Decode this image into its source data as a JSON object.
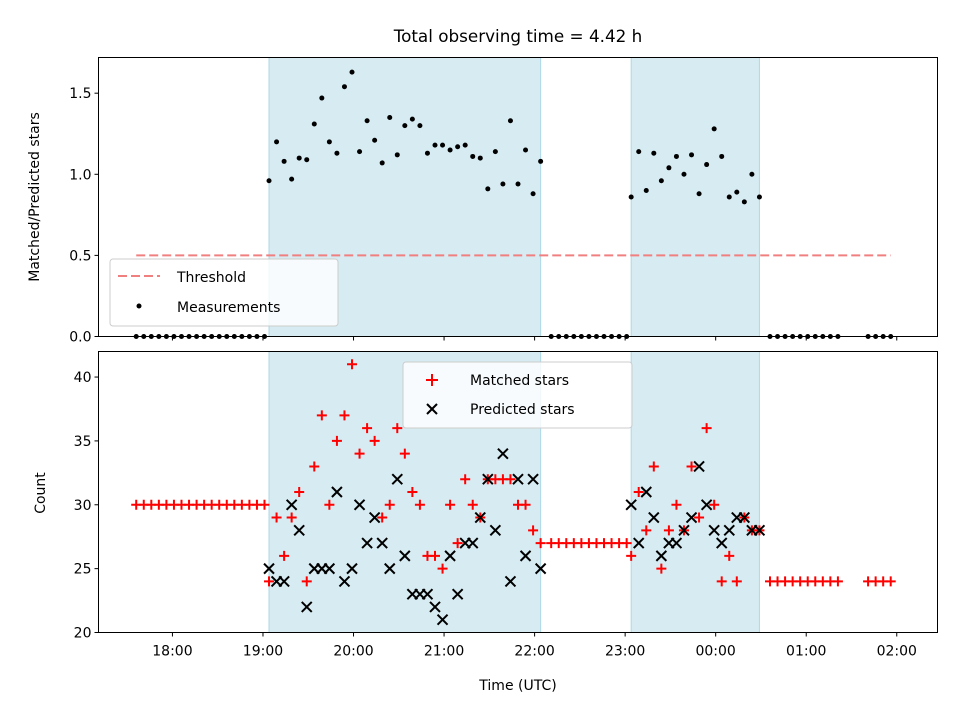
{
  "title": "Total observing time = 4.42 h",
  "colors": {
    "shade": "#add8e6",
    "threshold": "#f08080",
    "matched": "#ff0000",
    "predicted": "#000000",
    "measurement": "#000000"
  },
  "chart_data": [
    {
      "type": "scatter",
      "panel": "top",
      "ylabel": "Matched/Predicted stars",
      "ylim": [
        0,
        1.72
      ],
      "yticks": [
        0.0,
        0.5,
        1.0,
        1.5
      ],
      "ytick_labels": [
        "0.0",
        "0.5",
        "1.0",
        "1.5"
      ],
      "legend_position": "lower-left",
      "legend": [
        {
          "key": "threshold",
          "label": "Threshold"
        },
        {
          "key": "measurements",
          "label": "Measurements"
        }
      ],
      "threshold": {
        "value": 0.5,
        "x_start": "17:36",
        "x_end": "01:56"
      },
      "shaded_intervals": [
        [
          "19:04",
          "22:04"
        ],
        [
          "23:04",
          "00:29"
        ]
      ],
      "series": [
        {
          "name": "Measurements",
          "x": [
            "17:36",
            "17:41",
            "17:46",
            "17:51",
            "17:56",
            "18:01",
            "18:06",
            "18:11",
            "18:16",
            "18:21",
            "18:26",
            "18:31",
            "18:36",
            "18:41",
            "18:46",
            "18:51",
            "18:56",
            "19:01",
            "19:04",
            "19:09",
            "19:14",
            "19:19",
            "19:24",
            "19:29",
            "19:34",
            "19:39",
            "19:44",
            "19:49",
            "19:54",
            "19:59",
            "20:04",
            "20:09",
            "20:14",
            "20:19",
            "20:24",
            "20:29",
            "20:34",
            "20:39",
            "20:44",
            "20:49",
            "20:54",
            "20:59",
            "21:04",
            "21:09",
            "21:14",
            "21:19",
            "21:24",
            "21:29",
            "21:34",
            "21:39",
            "21:44",
            "21:49",
            "21:54",
            "21:59",
            "22:04",
            "22:11",
            "22:16",
            "22:21",
            "22:26",
            "22:31",
            "22:36",
            "22:41",
            "22:46",
            "22:51",
            "22:56",
            "23:01",
            "23:04",
            "23:09",
            "23:14",
            "23:19",
            "23:24",
            "23:29",
            "23:34",
            "23:39",
            "23:44",
            "23:49",
            "23:54",
            "23:59",
            "00:04",
            "00:09",
            "00:14",
            "00:19",
            "00:24",
            "00:29",
            "00:36",
            "00:41",
            "00:46",
            "00:51",
            "00:56",
            "01:01",
            "01:06",
            "01:11",
            "01:16",
            "01:21",
            "01:41",
            "01:46",
            "01:51",
            "01:56"
          ],
          "y": [
            0,
            0,
            0,
            0,
            0,
            0,
            0,
            0,
            0,
            0,
            0,
            0,
            0,
            0,
            0,
            0,
            0,
            0,
            0.96,
            1.2,
            1.08,
            0.97,
            1.1,
            1.09,
            1.31,
            1.47,
            1.2,
            1.13,
            1.54,
            1.63,
            1.14,
            1.33,
            1.21,
            1.07,
            1.35,
            1.12,
            1.3,
            1.34,
            1.3,
            1.13,
            1.18,
            1.18,
            1.15,
            1.17,
            1.18,
            1.11,
            1.1,
            0.91,
            1.14,
            0.94,
            1.33,
            0.94,
            1.15,
            0.88,
            1.08,
            0,
            0,
            0,
            0,
            0,
            0,
            0,
            0,
            0,
            0,
            0,
            0.86,
            1.14,
            0.9,
            1.13,
            0.96,
            1.04,
            1.11,
            1.0,
            1.12,
            0.88,
            1.06,
            1.28,
            1.11,
            0.86,
            0.89,
            0.83,
            1.0,
            0.86,
            0,
            0,
            0,
            0,
            0,
            0,
            0,
            0,
            0,
            0,
            0,
            0,
            0,
            0
          ]
        }
      ]
    },
    {
      "type": "scatter",
      "panel": "bottom",
      "xlabel": "Time (UTC)",
      "ylabel": "Count",
      "ylim": [
        20,
        42
      ],
      "yticks": [
        20,
        25,
        30,
        35,
        40
      ],
      "ytick_labels": [
        "20",
        "25",
        "30",
        "35",
        "40"
      ],
      "xticks": [
        "18:00",
        "19:00",
        "20:00",
        "21:00",
        "22:00",
        "23:00",
        "00:00",
        "01:00",
        "02:00"
      ],
      "legend_position": "upper-center",
      "legend": [
        {
          "key": "matched",
          "label": "Matched stars"
        },
        {
          "key": "predicted",
          "label": "Predicted stars"
        }
      ],
      "shaded_intervals": [
        [
          "19:04",
          "22:04"
        ],
        [
          "23:04",
          "00:29"
        ]
      ],
      "series": [
        {
          "name": "Matched stars",
          "marker": "plus",
          "x": [
            "17:36",
            "17:41",
            "17:46",
            "17:51",
            "17:56",
            "18:01",
            "18:06",
            "18:11",
            "18:16",
            "18:21",
            "18:26",
            "18:31",
            "18:36",
            "18:41",
            "18:46",
            "18:51",
            "18:56",
            "19:01",
            "19:04",
            "19:09",
            "19:14",
            "19:19",
            "19:24",
            "19:29",
            "19:34",
            "19:39",
            "19:44",
            "19:49",
            "19:54",
            "19:59",
            "20:04",
            "20:09",
            "20:14",
            "20:19",
            "20:24",
            "20:29",
            "20:34",
            "20:39",
            "20:44",
            "20:49",
            "20:54",
            "20:59",
            "21:04",
            "21:09",
            "21:14",
            "21:19",
            "21:24",
            "21:29",
            "21:34",
            "21:39",
            "21:44",
            "21:49",
            "21:54",
            "21:59",
            "22:04",
            "22:11",
            "22:16",
            "22:21",
            "22:26",
            "22:31",
            "22:36",
            "22:41",
            "22:46",
            "22:51",
            "22:56",
            "23:01",
            "23:04",
            "23:09",
            "23:14",
            "23:19",
            "23:24",
            "23:29",
            "23:34",
            "23:39",
            "23:44",
            "23:49",
            "23:54",
            "23:59",
            "00:04",
            "00:09",
            "00:14",
            "00:19",
            "00:24",
            "00:29",
            "00:36",
            "00:41",
            "00:46",
            "00:51",
            "00:56",
            "01:01",
            "01:06",
            "01:11",
            "01:16",
            "01:21",
            "01:41",
            "01:46",
            "01:51",
            "01:56"
          ],
          "y": [
            30,
            30,
            30,
            30,
            30,
            30,
            30,
            30,
            30,
            30,
            30,
            30,
            30,
            30,
            30,
            30,
            30,
            30,
            24,
            29,
            26,
            29,
            31,
            24,
            33,
            37,
            30,
            35,
            37,
            41,
            34,
            36,
            35,
            29,
            30,
            36,
            34,
            31,
            30,
            26,
            26,
            25,
            30,
            27,
            32,
            30,
            29,
            32,
            32,
            32,
            32,
            30,
            30,
            28,
            27,
            27,
            27,
            27,
            27,
            27,
            27,
            27,
            27,
            27,
            27,
            27,
            26,
            31,
            28,
            33,
            25,
            28,
            30,
            28,
            33,
            29,
            36,
            30,
            24,
            26,
            24,
            29,
            28,
            28,
            24,
            24,
            24,
            24,
            24,
            24,
            24,
            24,
            24,
            24,
            24,
            24,
            24,
            24
          ]
        },
        {
          "name": "Predicted stars",
          "marker": "x",
          "x": [
            "19:04",
            "19:09",
            "19:14",
            "19:19",
            "19:24",
            "19:29",
            "19:34",
            "19:39",
            "19:44",
            "19:49",
            "19:54",
            "19:59",
            "20:04",
            "20:09",
            "20:14",
            "20:19",
            "20:24",
            "20:29",
            "20:34",
            "20:39",
            "20:44",
            "20:49",
            "20:54",
            "20:59",
            "21:04",
            "21:09",
            "21:14",
            "21:19",
            "21:24",
            "21:29",
            "21:34",
            "21:39",
            "21:44",
            "21:49",
            "21:54",
            "21:59",
            "22:04",
            "23:04",
            "23:09",
            "23:14",
            "23:19",
            "23:24",
            "23:29",
            "23:34",
            "23:39",
            "23:44",
            "23:49",
            "23:54",
            "23:59",
            "00:04",
            "00:09",
            "00:14",
            "00:19",
            "00:24",
            "00:29"
          ],
          "y": [
            25,
            24,
            24,
            30,
            28,
            22,
            25,
            25,
            25,
            31,
            24,
            25,
            30,
            27,
            29,
            27,
            25,
            32,
            26,
            23,
            23,
            23,
            22,
            21,
            26,
            23,
            27,
            27,
            29,
            32,
            28,
            34,
            24,
            32,
            26,
            32,
            25,
            30,
            27,
            31,
            29,
            26,
            27,
            27,
            28,
            29,
            33,
            30,
            28,
            27,
            28,
            29,
            29,
            28,
            28
          ]
        }
      ]
    }
  ]
}
